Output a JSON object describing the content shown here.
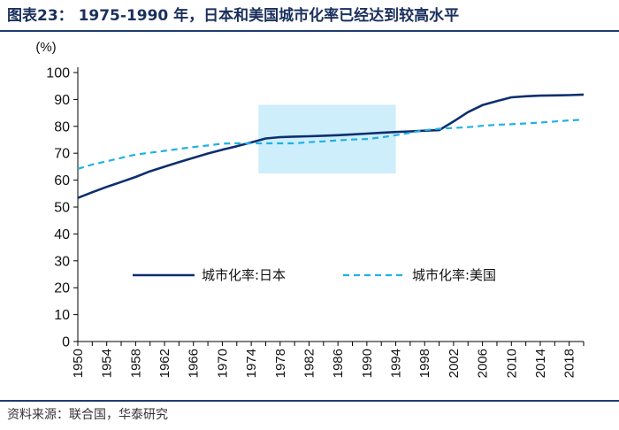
{
  "header": {
    "title": "图表23： 1975-1990 年，日本和美国城市化率已经达到较高水平"
  },
  "footer": {
    "source": "资料来源：联合国，华泰研究"
  },
  "colors": {
    "japan": "#0d2f6e",
    "usa": "#1fb1e6",
    "highlight": "#cdeefa",
    "rule": "#1f3c70"
  },
  "chart_data": {
    "type": "line",
    "title": "1975-1990 年，日本和美国城市化率已经达到较高水平",
    "ylabel": "(%)",
    "xlabel": "",
    "ylim": [
      0,
      100
    ],
    "yticks": [
      "0",
      "10",
      "20",
      "30",
      "40",
      "50",
      "60",
      "70",
      "80",
      "90",
      "100"
    ],
    "xlim": [
      1950,
      2020
    ],
    "xticks": [
      "1950",
      "1954",
      "1958",
      "1962",
      "1966",
      "1970",
      "1974",
      "1978",
      "1982",
      "1986",
      "1990",
      "1994",
      "1998",
      "2002",
      "2006",
      "2010",
      "2014",
      "2018"
    ],
    "highlight_range": {
      "x": [
        1975,
        1994
      ],
      "y": [
        62.5,
        88
      ]
    },
    "legend_position": "lower-center",
    "series": [
      {
        "name": "城市化率:日本",
        "style": "solid",
        "x": [
          1950,
          1952,
          1954,
          1956,
          1958,
          1960,
          1962,
          1964,
          1966,
          1968,
          1970,
          1972,
          1974,
          1976,
          1978,
          1980,
          1982,
          1984,
          1986,
          1988,
          1990,
          1992,
          1994,
          1996,
          1998,
          2000,
          2002,
          2004,
          2006,
          2008,
          2010,
          2012,
          2014,
          2016,
          2018,
          2020
        ],
        "values": [
          53.4,
          55.5,
          57.5,
          59.3,
          61.2,
          63.3,
          65.0,
          66.7,
          68.3,
          69.9,
          71.3,
          72.6,
          74.0,
          75.5,
          76.0,
          76.2,
          76.3,
          76.5,
          76.7,
          77.0,
          77.3,
          77.6,
          77.9,
          78.1,
          78.4,
          78.6,
          81.8,
          85.3,
          87.9,
          89.4,
          90.8,
          91.2,
          91.4,
          91.5,
          91.6,
          91.8
        ]
      },
      {
        "name": "城市化率:美国",
        "style": "dashed",
        "x": [
          1950,
          1952,
          1954,
          1956,
          1958,
          1960,
          1962,
          1964,
          1966,
          1968,
          1970,
          1972,
          1974,
          1976,
          1978,
          1980,
          1982,
          1984,
          1986,
          1988,
          1990,
          1992,
          1994,
          1996,
          1998,
          2000,
          2002,
          2004,
          2006,
          2008,
          2010,
          2012,
          2014,
          2016,
          2018,
          2020
        ],
        "values": [
          64.2,
          65.8,
          67.0,
          68.3,
          69.5,
          70.2,
          70.9,
          71.6,
          72.3,
          72.9,
          73.6,
          73.7,
          73.7,
          73.7,
          73.7,
          73.7,
          74.1,
          74.4,
          74.8,
          75.1,
          75.3,
          75.9,
          76.7,
          77.6,
          78.6,
          79.1,
          79.4,
          79.7,
          80.2,
          80.6,
          80.8,
          81.1,
          81.4,
          81.8,
          82.2,
          82.5
        ]
      }
    ]
  }
}
